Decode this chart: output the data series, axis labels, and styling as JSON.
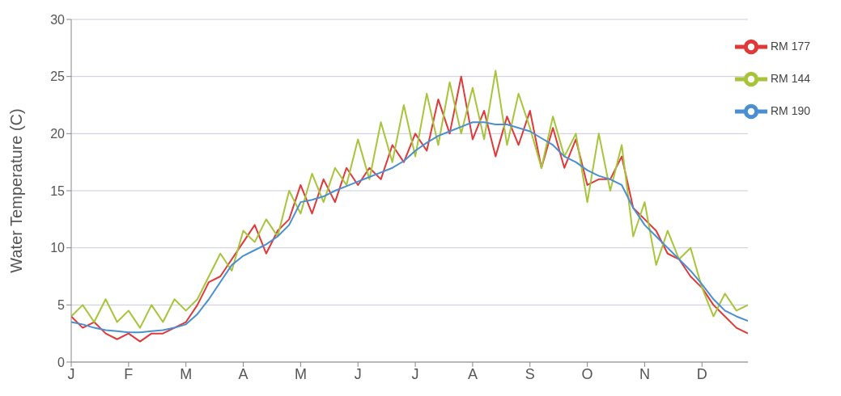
{
  "chart_data": {
    "type": "line",
    "ylabel": "Water Temperature (C)",
    "categories": [
      "J",
      null,
      null,
      null,
      null,
      "F",
      null,
      null,
      null,
      null,
      "M",
      null,
      null,
      null,
      null,
      "A",
      null,
      null,
      null,
      null,
      "M",
      null,
      null,
      null,
      null,
      "J",
      null,
      null,
      null,
      null,
      "J",
      null,
      null,
      null,
      null,
      "A",
      null,
      null,
      null,
      null,
      "S",
      null,
      null,
      null,
      null,
      "O",
      null,
      null,
      null,
      null,
      "N",
      null,
      null,
      null,
      null,
      "D",
      null,
      null,
      null,
      null
    ],
    "series": [
      {
        "name": "RM 177",
        "color": "#e0393a",
        "values": [
          4,
          3,
          3.5,
          2.5,
          2,
          2.5,
          1.8,
          2.5,
          2.5,
          3,
          3.5,
          5,
          7,
          7.5,
          9,
          10.5,
          12,
          9.5,
          11.5,
          12.5,
          15.5,
          13,
          16,
          14,
          17,
          15.5,
          17,
          16,
          19,
          17.5,
          20,
          18.5,
          23,
          20,
          25,
          19.5,
          22,
          18,
          21.5,
          19,
          22,
          17,
          20.5,
          17,
          19.5,
          15.5,
          16,
          16,
          18,
          13.5,
          12.5,
          11.5,
          9.5,
          9,
          7.5,
          6.5,
          5,
          4,
          3,
          2.5
        ]
      },
      {
        "name": "RM 144",
        "color": "#a8c43a",
        "values": [
          4,
          5,
          3.5,
          5.5,
          3.5,
          4.5,
          3,
          5,
          3.5,
          5.5,
          4.5,
          5.5,
          7.5,
          9.5,
          8,
          11.5,
          10.5,
          12.5,
          11,
          15,
          13,
          16.5,
          14,
          17,
          15.5,
          19.5,
          16,
          21,
          17.5,
          22.5,
          18,
          23.5,
          19,
          24.5,
          20,
          24,
          19.5,
          25.5,
          19,
          23.5,
          20.5,
          17,
          21.5,
          18,
          20,
          14,
          20,
          15,
          19,
          11,
          14,
          8.5,
          11.5,
          9,
          10,
          6.5,
          4,
          6,
          4.5,
          5
        ]
      },
      {
        "name": "RM 190",
        "color": "#4a8fd0",
        "values": [
          3.5,
          3.3,
          3,
          2.8,
          2.7,
          2.6,
          2.6,
          2.7,
          2.8,
          3,
          3.3,
          4.2,
          5.5,
          7,
          8.5,
          9.3,
          9.8,
          10.3,
          11,
          12,
          14,
          14.2,
          14.5,
          15,
          15.4,
          15.8,
          16.2,
          16.6,
          17,
          17.6,
          18.5,
          19.2,
          19.8,
          20.2,
          20.6,
          21,
          21,
          20.8,
          20.8,
          20.5,
          20.2,
          19.6,
          19,
          18,
          17.5,
          16.8,
          16.3,
          16,
          15.5,
          13.5,
          12,
          11,
          10,
          9,
          8,
          6.8,
          5.5,
          4.5,
          4,
          3.6
        ]
      }
    ],
    "ylim": [
      0,
      30
    ],
    "yticks": [
      0,
      5,
      10,
      15,
      20,
      25,
      30
    ],
    "grid": "y",
    "legend": "top right",
    "marker": "none",
    "line_style": "solid"
  }
}
